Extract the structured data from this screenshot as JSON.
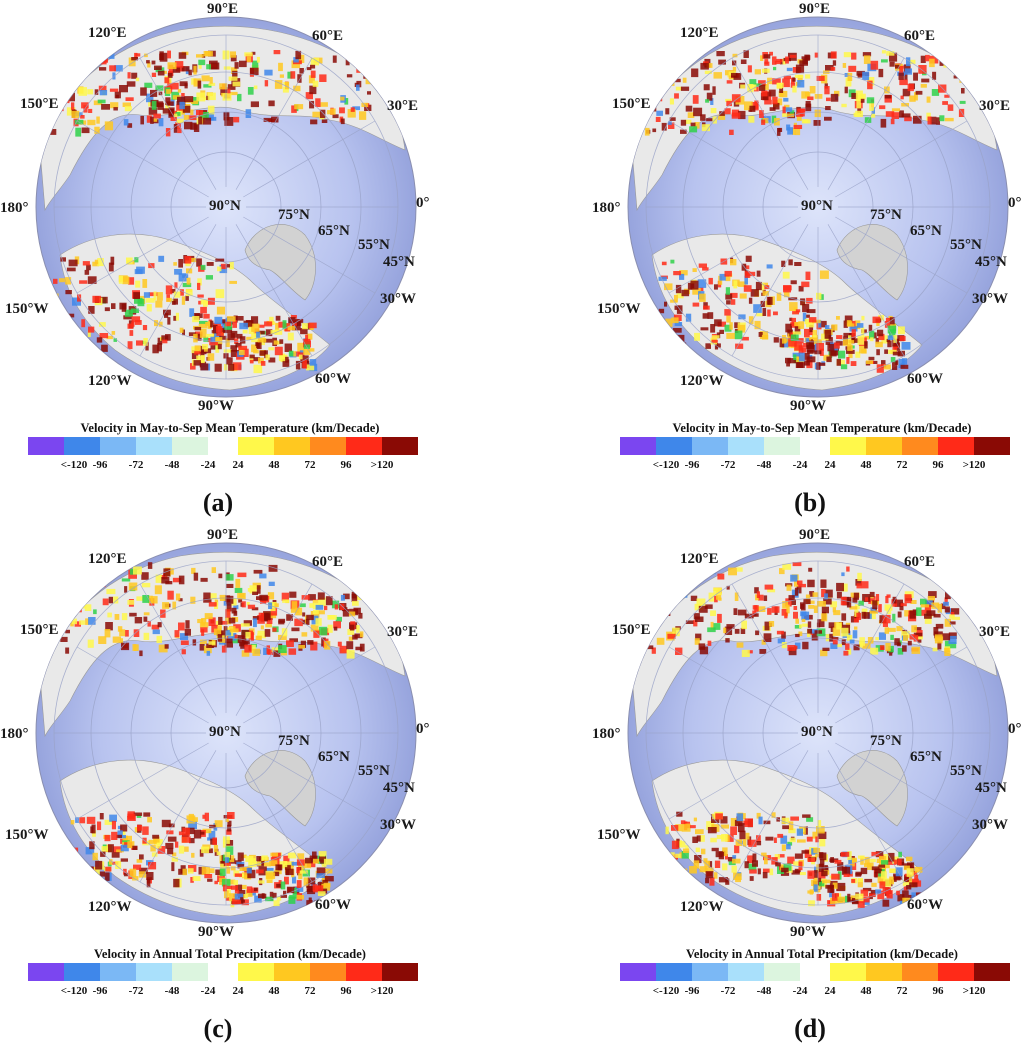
{
  "legend_bins": {
    "colors": [
      "#7b46f0",
      "#3f87ea",
      "#7bb8f5",
      "#a9e0fb",
      "#dcf5df",
      "#ffffff",
      "#fff84a",
      "#ffc820",
      "#ff8a1e",
      "#ff2a18",
      "#8a0a05"
    ],
    "ticks": [
      "<-120",
      "-96",
      "-72",
      "-48",
      "-24",
      "24",
      "48",
      "72",
      "96",
      ">120"
    ]
  },
  "map_labels": {
    "lon_90E": "90°E",
    "lon_60E": "60°E",
    "lon_30E": "30°E",
    "lon_0": "0°",
    "lon_120E": "120°E",
    "lon_150E": "150°E",
    "lon_180": "180°",
    "lon_150W": "150°W",
    "lon_120W": "120°W",
    "lon_90W": "90°W",
    "lon_60W": "60°W",
    "lon_30W": "30°W",
    "lat_90N": "90°N",
    "lat_75N": "75°N",
    "lat_65N": "65°N",
    "lat_55N": "55°N",
    "lat_45N": "45°N"
  },
  "panels": [
    {
      "id": "a",
      "caption": "a",
      "legend_title": "Velocity in May-to-Sep Mean Temperature (km/Decade)"
    },
    {
      "id": "b",
      "caption": "b",
      "legend_title": "Velocity in May-to-Sep Mean Temperature (km/Decade)"
    },
    {
      "id": "c",
      "caption": "c",
      "legend_title": "Velocity in Annual Total Precipitation (km/Decade)"
    },
    {
      "id": "d",
      "caption": "d",
      "legend_title": "Velocity in Annual Total Precipitation (km/Decade)"
    }
  ]
}
